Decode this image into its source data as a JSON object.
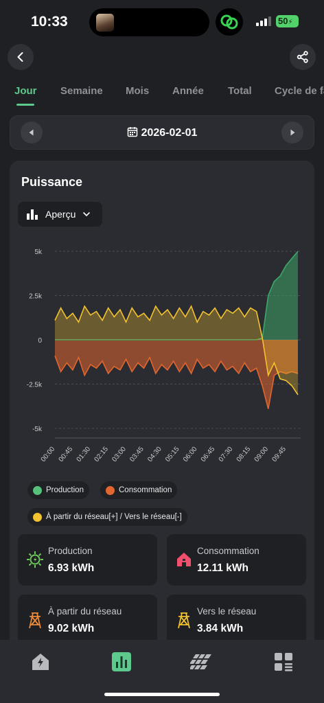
{
  "status_bar": {
    "time": "10:33",
    "battery": "50"
  },
  "tabs": [
    {
      "label": "Jour",
      "active": true
    },
    {
      "label": "Semaine",
      "active": false
    },
    {
      "label": "Mois",
      "active": false
    },
    {
      "label": "Année",
      "active": false
    },
    {
      "label": "Total",
      "active": false
    },
    {
      "label": "Cycle de fa",
      "active": false
    }
  ],
  "date_bar": {
    "date": "2026-02-01"
  },
  "power_card": {
    "title": "Puissance",
    "view_selector": "Aperçu"
  },
  "chart_data": {
    "type": "area",
    "y_ticks": [
      "5k",
      "2.5k",
      "0",
      "-2.5k",
      "-5k"
    ],
    "ylim": [
      -5000,
      5000
    ],
    "x_ticks": [
      "00:00",
      "00:45",
      "01:30",
      "02:15",
      "03:00",
      "03:45",
      "04:30",
      "05:15",
      "06:00",
      "06:45",
      "07:30",
      "08:15",
      "09:00",
      "09:45"
    ],
    "grid": true,
    "x_hours": [
      0,
      0.25,
      0.5,
      0.75,
      1,
      1.25,
      1.5,
      1.75,
      2,
      2.25,
      2.5,
      2.75,
      3,
      3.25,
      3.5,
      3.75,
      4,
      4.25,
      4.5,
      4.75,
      5,
      5.25,
      5.5,
      5.75,
      6,
      6.25,
      6.5,
      6.75,
      7,
      7.25,
      7.5,
      7.75,
      8,
      8.25,
      8.5,
      8.75,
      9,
      9.25,
      9.5,
      9.75,
      10,
      10.25
    ],
    "series": [
      {
        "name": "Production",
        "color": "#3da668",
        "values": [
          0,
          0,
          0,
          0,
          0,
          0,
          0,
          0,
          0,
          0,
          0,
          0,
          0,
          0,
          0,
          0,
          0,
          0,
          0,
          0,
          0,
          0,
          0,
          0,
          0,
          0,
          0,
          0,
          0,
          0,
          0,
          0,
          0,
          0,
          0,
          100,
          2500,
          3300,
          3600,
          4200,
          4600,
          5000
        ]
      },
      {
        "name": "Consommation",
        "color": "#e2662f",
        "values": [
          -900,
          -1800,
          -1300,
          -1700,
          -1000,
          -2000,
          -1400,
          -1600,
          -1200,
          -1900,
          -1500,
          -1700,
          -1100,
          -1800,
          -1300,
          -1600,
          -1000,
          -1900,
          -1400,
          -1700,
          -1200,
          -1800,
          -1300,
          -1900,
          -1100,
          -1600,
          -1400,
          -1800,
          -1200,
          -1700,
          -1500,
          -1900,
          -1300,
          -1800,
          -1600,
          -2600,
          -3900,
          -2000,
          -1800,
          -1900,
          -1800,
          -1900
        ]
      },
      {
        "name": "À partir du réseau[+] / Vers le réseau[-]",
        "color": "#f2c230",
        "values": [
          1100,
          1800,
          1200,
          1500,
          1000,
          1900,
          1400,
          1600,
          1100,
          1800,
          1300,
          1700,
          1000,
          1800,
          1300,
          1500,
          1100,
          1900,
          1400,
          1700,
          1200,
          1800,
          1300,
          1900,
          1000,
          1600,
          1400,
          1800,
          1200,
          1700,
          1500,
          1800,
          1300,
          1800,
          1600,
          100,
          -2000,
          -1300,
          -2200,
          -2300,
          -2600,
          -3100
        ]
      }
    ]
  },
  "legend": {
    "production": "Production",
    "consumption": "Consommation",
    "grid": "À partir du réseau[+] / Vers le réseau[-]"
  },
  "stats": {
    "production": {
      "label": "Production",
      "value": "6.93 kWh"
    },
    "consumption": {
      "label": "Consommation",
      "value": "12.11 kWh"
    },
    "from_grid": {
      "label": "À partir du réseau",
      "value": "9.02 kWh"
    },
    "to_grid": {
      "label": "Vers le réseau",
      "value": "3.84 kWh"
    }
  },
  "colors": {
    "accent": "#5ec98c",
    "production": "#3da668",
    "consumption": "#e2662f",
    "grid": "#f2c230",
    "house": "#f0506e"
  },
  "icons": {
    "back": "chevron-left-icon",
    "share": "share-icon",
    "calendar": "calendar-icon",
    "nav": [
      "home-bolt-icon",
      "bar-chart-icon",
      "solar-panel-icon",
      "grid-menu-icon"
    ]
  }
}
